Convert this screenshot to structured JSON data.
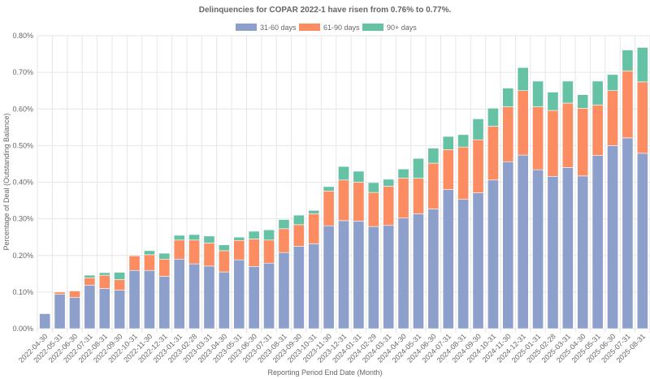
{
  "chart_data": {
    "type": "bar",
    "stacked": true,
    "title": "Delinquencies for COPAR 2022-1 have risen from 0.76% to 0.77%.",
    "xlabel": "Reporting Period End Date (Month)",
    "ylabel": "Percentage of Deal (Outstanding Balance)",
    "ylim": [
      0,
      0.8
    ],
    "y_ticks": [
      "0.00%",
      "0.10%",
      "0.20%",
      "0.30%",
      "0.40%",
      "0.50%",
      "0.60%",
      "0.70%",
      "0.80%"
    ],
    "y_tick_values": [
      0,
      0.1,
      0.2,
      0.3,
      0.4,
      0.5,
      0.6,
      0.7,
      0.8
    ],
    "grid": true,
    "legend_position": "top-center",
    "categories": [
      "2022-04-30",
      "2022-05-31",
      "2022-06-30",
      "2022-07-31",
      "2022-08-31",
      "2022-09-30",
      "2022-10-31",
      "2022-11-30",
      "2022-12-31",
      "2023-01-31",
      "2023-02-28",
      "2023-03-31",
      "2023-04-30",
      "2023-05-31",
      "2023-06-30",
      "2023-07-31",
      "2023-08-31",
      "2023-09-30",
      "2023-10-31",
      "2023-11-30",
      "2023-12-31",
      "2024-01-31",
      "2024-02-29",
      "2024-03-31",
      "2024-04-30",
      "2024-05-31",
      "2024-06-30",
      "2024-07-31",
      "2024-08-31",
      "2024-09-30",
      "2024-10-31",
      "2024-11-30",
      "2024-12-31",
      "2025-01-31",
      "2025-02-28",
      "2025-03-31",
      "2025-04-30",
      "2025-05-31",
      "2025-06-30",
      "2025-07-31",
      "2025-08-31"
    ],
    "series": [
      {
        "name": "31-60 days",
        "color": "#8da0cb",
        "values": [
          0.041,
          0.094,
          0.085,
          0.119,
          0.11,
          0.105,
          0.159,
          0.159,
          0.143,
          0.19,
          0.177,
          0.171,
          0.155,
          0.188,
          0.17,
          0.179,
          0.208,
          0.225,
          0.232,
          0.281,
          0.295,
          0.294,
          0.279,
          0.282,
          0.302,
          0.314,
          0.327,
          0.38,
          0.353,
          0.371,
          0.406,
          0.456,
          0.474,
          0.434,
          0.416,
          0.44,
          0.417,
          0.473,
          0.5,
          0.521,
          0.479
        ]
      },
      {
        "name": "61-90 days",
        "color": "#fc8d62",
        "values": [
          0.0,
          0.006,
          0.018,
          0.02,
          0.036,
          0.029,
          0.04,
          0.043,
          0.047,
          0.052,
          0.065,
          0.063,
          0.058,
          0.053,
          0.075,
          0.063,
          0.065,
          0.059,
          0.082,
          0.095,
          0.111,
          0.106,
          0.093,
          0.107,
          0.109,
          0.097,
          0.125,
          0.109,
          0.143,
          0.145,
          0.147,
          0.15,
          0.176,
          0.172,
          0.18,
          0.176,
          0.185,
          0.138,
          0.15,
          0.183,
          0.195
        ]
      },
      {
        "name": "90+ days",
        "color": "#66c2a5",
        "values": [
          0.0,
          0.0,
          0.0,
          0.007,
          0.007,
          0.02,
          0.002,
          0.011,
          0.016,
          0.013,
          0.015,
          0.019,
          0.016,
          0.009,
          0.021,
          0.028,
          0.025,
          0.026,
          0.009,
          0.012,
          0.037,
          0.03,
          0.027,
          0.019,
          0.025,
          0.054,
          0.041,
          0.036,
          0.034,
          0.057,
          0.049,
          0.051,
          0.063,
          0.07,
          0.05,
          0.06,
          0.037,
          0.065,
          0.044,
          0.057,
          0.094
        ]
      }
    ]
  }
}
